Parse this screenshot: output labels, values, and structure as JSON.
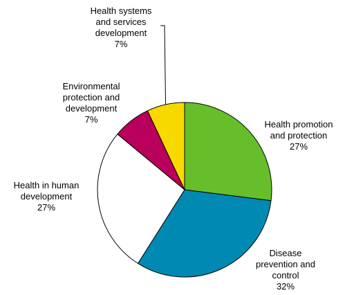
{
  "chart_data": {
    "type": "pie",
    "title": "",
    "slices": [
      {
        "label_lines": [
          "Health promotion",
          "and protection"
        ],
        "value": 27,
        "value_label": "27%",
        "color": "#66bf2a"
      },
      {
        "label_lines": [
          "Disease",
          "prevention and",
          "control"
        ],
        "value": 32,
        "value_label": "32%",
        "color": "#0089b3"
      },
      {
        "label_lines": [
          "Health in human",
          "development"
        ],
        "value": 27,
        "value_label": "27%",
        "color": "#ffffff"
      },
      {
        "label_lines": [
          "Environmental",
          "protection and",
          "development"
        ],
        "value": 7,
        "value_label": "7%",
        "color": "#b8005c"
      },
      {
        "label_lines": [
          "Health systems",
          "and services",
          "development"
        ],
        "value": 7,
        "value_label": "7%",
        "color": "#f7d900"
      }
    ],
    "start_angle_deg": 0,
    "direction": "clockwise",
    "slice_border_color": "#000000",
    "legend": "none",
    "leader_line_on": "Health systems and services development"
  }
}
